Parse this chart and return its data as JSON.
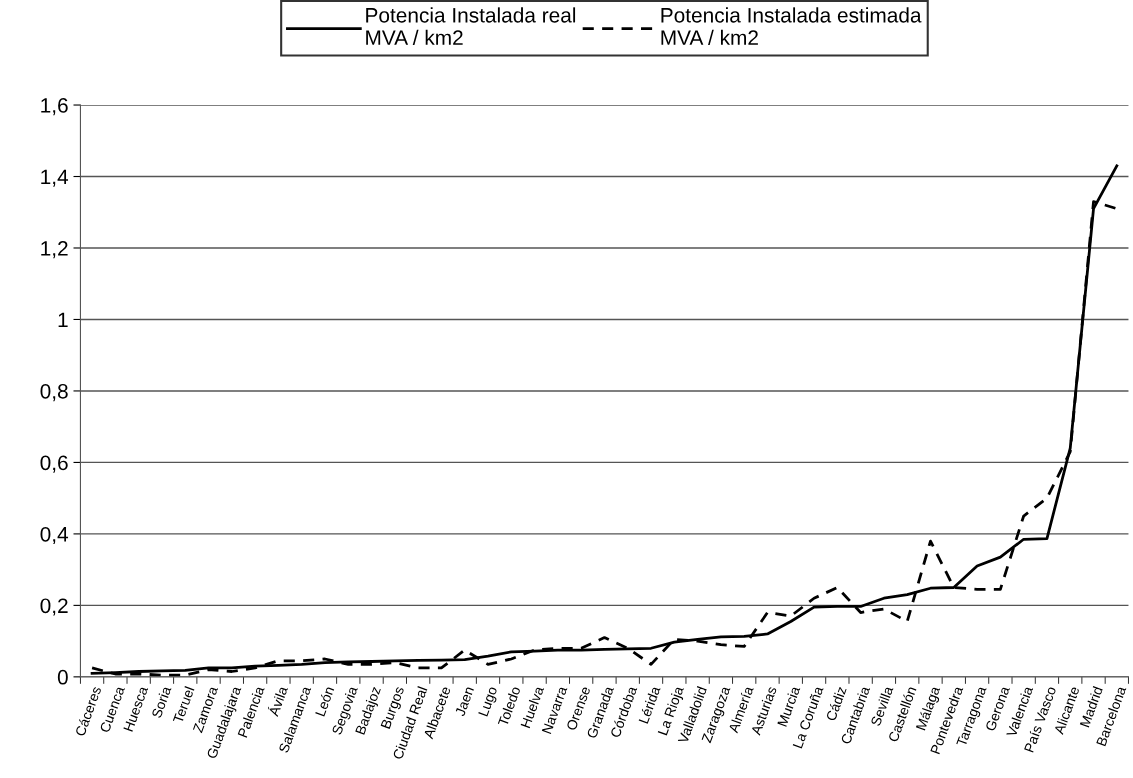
{
  "chart_data": {
    "type": "line",
    "categories": [
      "Cáceres",
      "Cuenca",
      "Huesca",
      "Soria",
      "Teruel",
      "Zamora",
      "Guadalajara",
      "Palencia",
      "Ávila",
      "Salamanca",
      "León",
      "Segovia",
      "Badajoz",
      "Burgos",
      "Ciudad Real",
      "Albacete",
      "Jaen",
      "Lugo",
      "Toledo",
      "Huelva",
      "Navarra",
      "Orense",
      "Granada",
      "Córdoba",
      "Lérida",
      "La Rioja",
      "Valladolid",
      "Zaragoza",
      "Almería",
      "Asturias",
      "Murcia",
      "La Coruña",
      "Cádiz",
      "Cantabria",
      "Sevilla",
      "Castellón",
      "Málaga",
      "Pontevedra",
      "Tarragona",
      "Gerona",
      "Valencia",
      "País Vasco",
      "Alicante",
      "Madrid",
      "Barcelona"
    ],
    "series": [
      {
        "name": "Potencia Instalada real\nMVA / km2",
        "color": "#000000",
        "line_style": "solid",
        "values": [
          0.01,
          0.012,
          0.015,
          0.017,
          0.018,
          0.025,
          0.025,
          0.03,
          0.032,
          0.035,
          0.04,
          0.042,
          0.043,
          0.045,
          0.046,
          0.047,
          0.048,
          0.058,
          0.07,
          0.072,
          0.075,
          0.075,
          0.077,
          0.078,
          0.08,
          0.097,
          0.105,
          0.112,
          0.113,
          0.12,
          0.155,
          0.195,
          0.197,
          0.197,
          0.22,
          0.23,
          0.248,
          0.25,
          0.31,
          0.335,
          0.385,
          0.387,
          0.64,
          1.31,
          1.43
        ]
      },
      {
        "name": "Potencia Instalada estimada\nMVA / km2",
        "color": "#000000",
        "line_style": "dashed",
        "values": [
          0.025,
          0.008,
          0.008,
          0.005,
          0.005,
          0.02,
          0.015,
          0.025,
          0.045,
          0.045,
          0.05,
          0.035,
          0.035,
          0.04,
          0.025,
          0.025,
          0.075,
          0.035,
          0.05,
          0.075,
          0.08,
          0.08,
          0.11,
          0.08,
          0.035,
          0.105,
          0.1,
          0.09,
          0.085,
          0.18,
          0.17,
          0.22,
          0.25,
          0.18,
          0.19,
          0.155,
          0.38,
          0.25,
          0.245,
          0.245,
          0.45,
          0.5,
          0.63,
          1.33,
          1.31
        ]
      }
    ],
    "ylim": [
      0,
      1.6
    ],
    "yticks": [
      {
        "value": 0,
        "label": "0"
      },
      {
        "value": 0.2,
        "label": "0,2"
      },
      {
        "value": 0.4,
        "label": "0,4"
      },
      {
        "value": 0.6,
        "label": "0,6"
      },
      {
        "value": 0.8,
        "label": "0,8"
      },
      {
        "value": 1,
        "label": "1"
      },
      {
        "value": 1.2,
        "label": "1,2"
      },
      {
        "value": 1.4,
        "label": "1,4"
      },
      {
        "value": 1.6,
        "label": "1,6"
      }
    ],
    "grid": "y",
    "legend": "top",
    "marker": "none"
  }
}
